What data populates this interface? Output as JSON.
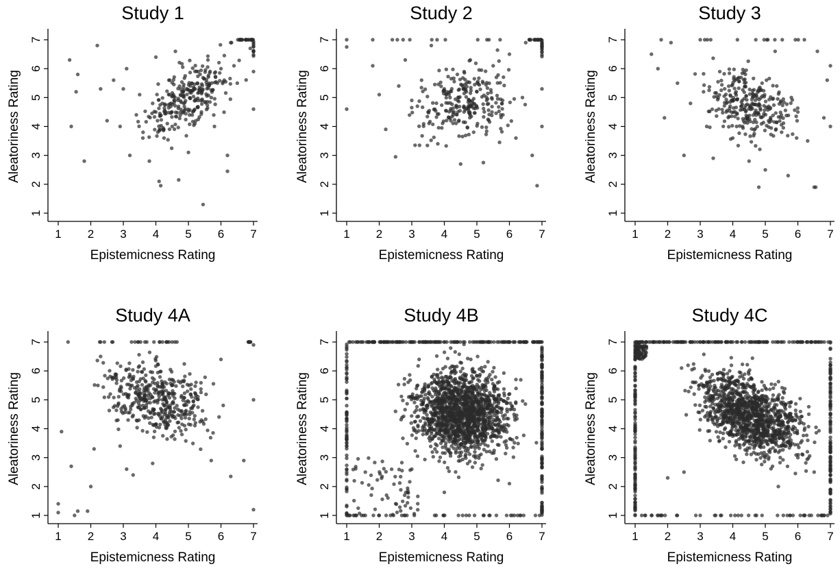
{
  "figure": {
    "background": "#ffffff",
    "point_color": "#2b2b2b",
    "point_opacity": 0.7
  },
  "chart_data": [
    {
      "type": "scatter",
      "title": "Study 1",
      "xlabel": "Epistemicness Rating",
      "ylabel": "Aleatoriness Rating",
      "xlim": [
        1,
        7
      ],
      "ylim": [
        1,
        7
      ],
      "x_ticks": [
        "1",
        "2",
        "3",
        "4",
        "5",
        "6",
        "7"
      ],
      "y_ticks": [
        "1",
        "2",
        "3",
        "4",
        "5",
        "6",
        "7"
      ],
      "grid": false,
      "n_points_approx": 320,
      "trend": "positive",
      "points": [
        [
          1.35,
          6.3
        ],
        [
          1.4,
          4.0
        ],
        [
          1.55,
          5.2
        ],
        [
          1.6,
          5.8
        ],
        [
          1.8,
          2.8
        ],
        [
          2.2,
          6.8
        ],
        [
          2.3,
          5.3
        ],
        [
          2.5,
          4.2
        ],
        [
          2.7,
          5.6
        ],
        [
          2.9,
          4.0
        ],
        [
          3.0,
          5.3
        ],
        [
          3.1,
          6.0
        ],
        [
          3.2,
          3.0
        ],
        [
          3.4,
          4.4
        ],
        [
          3.5,
          5.1
        ],
        [
          3.6,
          3.6
        ],
        [
          3.8,
          2.8
        ],
        [
          3.9,
          4.8
        ],
        [
          4.0,
          6.4
        ],
        [
          4.05,
          4.2
        ],
        [
          4.1,
          2.1
        ],
        [
          4.15,
          1.95
        ],
        [
          4.2,
          4.8
        ],
        [
          4.25,
          3.6
        ],
        [
          4.3,
          4.5
        ],
        [
          4.4,
          5.6
        ],
        [
          4.5,
          4.0
        ],
        [
          4.6,
          6.6
        ],
        [
          4.7,
          2.15
        ],
        [
          4.8,
          5.2
        ],
        [
          4.9,
          4.6
        ],
        [
          5.0,
          3.1
        ],
        [
          5.1,
          5.5
        ],
        [
          5.2,
          4.1
        ],
        [
          5.3,
          5.9
        ],
        [
          5.4,
          4.5
        ],
        [
          5.45,
          1.3
        ],
        [
          5.6,
          6.3
        ],
        [
          5.7,
          5.0
        ],
        [
          5.8,
          4.0
        ],
        [
          6.0,
          6.0
        ],
        [
          6.1,
          5.6
        ],
        [
          6.2,
          2.45
        ],
        [
          6.2,
          3.0
        ],
        [
          6.3,
          6.9
        ],
        [
          6.4,
          6.1
        ],
        [
          6.5,
          5.5
        ],
        [
          6.6,
          7.0
        ],
        [
          6.8,
          7.0
        ],
        [
          6.9,
          6.7
        ],
        [
          7.0,
          6.6
        ],
        [
          7.0,
          4.6
        ],
        [
          7.0,
          5.9
        ]
      ]
    },
    {
      "type": "scatter",
      "title": "Study 2",
      "xlabel": "Epistemicness Rating",
      "ylabel": "Aleatoriness Rating",
      "xlim": [
        1,
        7
      ],
      "ylim": [
        1,
        7
      ],
      "x_ticks": [
        "1",
        "2",
        "3",
        "4",
        "5",
        "6",
        "7"
      ],
      "y_ticks": [
        "1",
        "2",
        "3",
        "4",
        "5",
        "6",
        "7"
      ],
      "grid": false,
      "n_points_approx": 320,
      "trend": "weak positive",
      "points": [
        [
          1.0,
          7.0
        ],
        [
          1.0,
          6.75
        ],
        [
          1.0,
          4.6
        ],
        [
          1.8,
          7.0
        ],
        [
          1.8,
          6.1
        ],
        [
          2.0,
          5.1
        ],
        [
          2.2,
          3.9
        ],
        [
          2.5,
          2.95
        ],
        [
          2.6,
          5.4
        ],
        [
          2.8,
          6.3
        ],
        [
          3.0,
          4.9
        ],
        [
          3.1,
          3.35
        ],
        [
          3.3,
          5.6
        ],
        [
          3.5,
          4.5
        ],
        [
          3.6,
          6.8
        ],
        [
          3.8,
          3.4
        ],
        [
          4.0,
          5.3
        ],
        [
          4.2,
          4.2
        ],
        [
          4.4,
          5.8
        ],
        [
          4.5,
          2.7
        ],
        [
          4.6,
          4.7
        ],
        [
          4.8,
          6.3
        ],
        [
          4.9,
          3.8
        ],
        [
          5.0,
          5.2
        ],
        [
          5.2,
          2.75
        ],
        [
          5.3,
          4.9
        ],
        [
          5.5,
          6.1
        ],
        [
          5.6,
          5.7
        ],
        [
          5.8,
          4.4
        ],
        [
          6.0,
          6.5
        ],
        [
          6.2,
          3.6
        ],
        [
          6.4,
          5.0
        ],
        [
          6.5,
          6.9
        ],
        [
          6.7,
          3.0
        ],
        [
          6.8,
          7.0
        ],
        [
          6.85,
          1.95
        ],
        [
          7.0,
          6.8
        ],
        [
          7.0,
          5.3
        ],
        [
          7.0,
          4.0
        ]
      ]
    },
    {
      "type": "scatter",
      "title": "Study 3",
      "xlabel": "Epistemicness Rating",
      "ylabel": "Aleatoriness Rating",
      "xlim": [
        1,
        7
      ],
      "ylim": [
        1,
        7
      ],
      "x_ticks": [
        "1",
        "2",
        "3",
        "4",
        "5",
        "6",
        "7"
      ],
      "y_ticks": [
        "1",
        "2",
        "3",
        "4",
        "5",
        "6",
        "7"
      ],
      "grid": false,
      "n_points_approx": 320,
      "trend": "weak negative",
      "points": [
        [
          1.5,
          6.5
        ],
        [
          1.7,
          6.0
        ],
        [
          1.8,
          7.0
        ],
        [
          1.9,
          4.3
        ],
        [
          2.1,
          6.9
        ],
        [
          2.3,
          5.5
        ],
        [
          2.5,
          3.0
        ],
        [
          2.7,
          4.8
        ],
        [
          3.0,
          7.0
        ],
        [
          3.1,
          5.2
        ],
        [
          3.2,
          4.0
        ],
        [
          3.4,
          2.9
        ],
        [
          3.6,
          5.9
        ],
        [
          3.8,
          4.5
        ],
        [
          4.0,
          3.6
        ],
        [
          4.1,
          5.2
        ],
        [
          4.3,
          4.0
        ],
        [
          4.5,
          2.8
        ],
        [
          4.6,
          4.8
        ],
        [
          4.8,
          1.9
        ],
        [
          4.9,
          5.5
        ],
        [
          5.0,
          2.5
        ],
        [
          5.1,
          4.2
        ],
        [
          5.3,
          6.6
        ],
        [
          5.5,
          3.8
        ],
        [
          5.7,
          2.3
        ],
        [
          5.8,
          5.0
        ],
        [
          6.0,
          4.5
        ],
        [
          6.2,
          7.0
        ],
        [
          6.3,
          3.5
        ],
        [
          6.5,
          1.9
        ],
        [
          6.55,
          1.9
        ],
        [
          6.6,
          6.6
        ],
        [
          6.8,
          4.3
        ],
        [
          6.9,
          5.6
        ],
        [
          7.0,
          4.0
        ],
        [
          7.0,
          6.1
        ]
      ]
    },
    {
      "type": "scatter",
      "title": "Study 4A",
      "xlabel": "Epistemicness Rating",
      "ylabel": "Aleatoriness Rating",
      "xlim": [
        1,
        7
      ],
      "ylim": [
        1,
        7
      ],
      "x_ticks": [
        "1",
        "2",
        "3",
        "4",
        "5",
        "6",
        "7"
      ],
      "y_ticks": [
        "1",
        "2",
        "3",
        "4",
        "5",
        "6",
        "7"
      ],
      "grid": false,
      "n_points_approx": 500,
      "trend": "weak negative",
      "points": [
        [
          1.0,
          1.4
        ],
        [
          1.0,
          1.1
        ],
        [
          1.1,
          3.9
        ],
        [
          1.3,
          7.0
        ],
        [
          1.4,
          2.7
        ],
        [
          1.5,
          1.0
        ],
        [
          1.6,
          1.15
        ],
        [
          1.9,
          1.15
        ],
        [
          2.0,
          2.0
        ],
        [
          2.1,
          3.3
        ],
        [
          2.3,
          6.5
        ],
        [
          2.6,
          5.2
        ],
        [
          2.9,
          3.4
        ],
        [
          3.1,
          2.6
        ],
        [
          3.3,
          2.4
        ],
        [
          3.6,
          6.3
        ],
        [
          3.9,
          2.8
        ],
        [
          4.2,
          4.6
        ],
        [
          4.5,
          7.0
        ],
        [
          4.8,
          3.8
        ],
        [
          5.1,
          5.1
        ],
        [
          5.4,
          4.3
        ],
        [
          5.7,
          2.9
        ],
        [
          6.0,
          6.4
        ],
        [
          6.3,
          2.35
        ],
        [
          6.7,
          2.9
        ],
        [
          6.9,
          7.0
        ],
        [
          7.0,
          6.9
        ],
        [
          7.0,
          1.2
        ],
        [
          7.0,
          5.0
        ]
      ]
    },
    {
      "type": "scatter",
      "title": "Study 4B",
      "xlabel": "Epistemicness Rating",
      "ylabel": "Aleatoriness Rating",
      "xlim": [
        1,
        7
      ],
      "ylim": [
        1,
        7
      ],
      "x_ticks": [
        "1",
        "2",
        "3",
        "4",
        "5",
        "6",
        "7"
      ],
      "y_ticks": [
        "1",
        "2",
        "3",
        "4",
        "5",
        "6",
        "7"
      ],
      "grid": false,
      "n_points_approx": 2200,
      "trend": "none",
      "points": [
        [
          1.0,
          1.0
        ],
        [
          1.1,
          1.0
        ],
        [
          1.3,
          1.0
        ],
        [
          1.0,
          3.5
        ],
        [
          1.0,
          5.9
        ],
        [
          1.5,
          7.0
        ],
        [
          2.0,
          1.0
        ],
        [
          2.5,
          4.6
        ],
        [
          3.0,
          2.6
        ],
        [
          3.5,
          7.0
        ],
        [
          4.0,
          1.8
        ],
        [
          4.5,
          4.7
        ],
        [
          5.0,
          4.9
        ],
        [
          5.4,
          1.0
        ],
        [
          5.6,
          1.0
        ],
        [
          6.0,
          2.1
        ],
        [
          6.5,
          7.0
        ],
        [
          6.8,
          1.0
        ],
        [
          7.0,
          1.2
        ],
        [
          7.0,
          3.8
        ],
        [
          7.0,
          7.0
        ]
      ]
    },
    {
      "type": "scatter",
      "title": "Study 4C",
      "xlabel": "Epistemicness Rating",
      "ylabel": "Aleatoriness Rating",
      "xlim": [
        1,
        7
      ],
      "ylim": [
        1,
        7
      ],
      "x_ticks": [
        "1",
        "2",
        "3",
        "4",
        "5",
        "6",
        "7"
      ],
      "y_ticks": [
        "1",
        "2",
        "3",
        "4",
        "5",
        "6",
        "7"
      ],
      "grid": false,
      "n_points_approx": 1800,
      "trend": "negative",
      "points": [
        [
          1.0,
          7.0
        ],
        [
          1.1,
          6.8
        ],
        [
          1.2,
          7.0
        ],
        [
          1.0,
          1.0
        ],
        [
          1.3,
          1.0
        ],
        [
          1.5,
          1.0
        ],
        [
          1.8,
          1.0
        ],
        [
          2.0,
          2.3
        ],
        [
          2.5,
          2.5
        ],
        [
          3.0,
          1.0
        ],
        [
          3.0,
          7.0
        ],
        [
          3.5,
          5.3
        ],
        [
          4.0,
          4.2
        ],
        [
          4.5,
          4.3
        ],
        [
          5.0,
          5.0
        ],
        [
          5.4,
          2.0
        ],
        [
          6.0,
          3.0
        ],
        [
          6.2,
          1.0
        ],
        [
          6.5,
          2.5
        ],
        [
          6.8,
          1.0
        ],
        [
          7.0,
          1.3
        ],
        [
          7.0,
          4.5
        ],
        [
          7.0,
          7.0
        ]
      ]
    }
  ]
}
